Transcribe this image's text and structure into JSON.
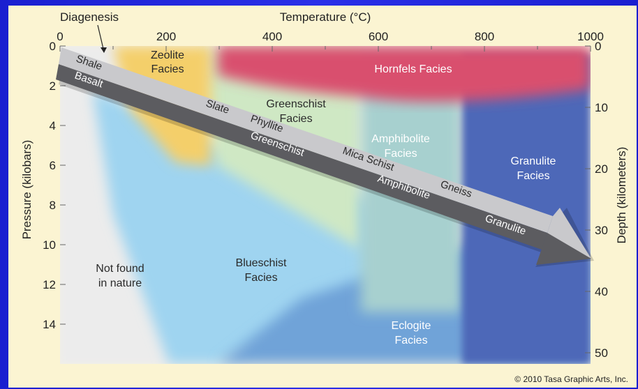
{
  "diagram": {
    "top_axis": {
      "label": "Temperature (°C)",
      "ticks": [
        "0",
        "200",
        "400",
        "600",
        "800",
        "1000"
      ]
    },
    "left_axis": {
      "label": "Pressure (kilobars)",
      "ticks": [
        "0",
        "2",
        "4",
        "6",
        "8",
        "10",
        "12",
        "14"
      ]
    },
    "right_axis": {
      "label": "Depth (kilometers)",
      "ticks": [
        "0",
        "10",
        "20",
        "30",
        "40",
        "50"
      ]
    },
    "diagenesis": "Diagenesis",
    "facies": {
      "zeolite": [
        "Zeolite",
        "Facies"
      ],
      "hornfels": "Hornfels Facies",
      "greenschist": [
        "Greenschist",
        "Facies"
      ],
      "amphibolite": [
        "Amphibolite",
        "Facies"
      ],
      "granulite": [
        "Granulite",
        "Facies"
      ],
      "blueschist": [
        "Blueschist",
        "Facies"
      ],
      "eclogite": [
        "Eclogite",
        "Facies"
      ],
      "not_found": [
        "Not found",
        "in nature"
      ]
    },
    "shale_path": [
      "Shale",
      "Slate",
      "Phyllite",
      "Mica Schist",
      "Gneiss"
    ],
    "basalt_path": [
      "Basalt",
      "Greenschist",
      "Amphibolite",
      "Granulite"
    ],
    "copyright": "© 2010 Tasa Graphic Arts, Inc.",
    "colors": {
      "background": "#fbf4d2",
      "hornfels": "#d9506e",
      "zeolite": "#f4cf6a",
      "greenschist": "#cfe8c4",
      "amphibolite": "#a7d0cf",
      "granulite": "#4e68b8",
      "blueschist": "#9fd4f0",
      "eclogite": "#6fa3d8",
      "not_found": "#ececec",
      "arrow_light": "#c9c9cc",
      "arrow_dark": "#5c5c60",
      "frame": "#1f22d6"
    }
  }
}
